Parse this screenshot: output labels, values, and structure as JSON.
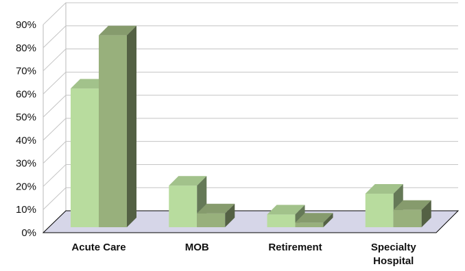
{
  "chart_data": {
    "type": "bar",
    "three_d": true,
    "title": "",
    "xlabel": "",
    "ylabel": "",
    "categories": [
      {
        "label": "Acute Care",
        "lines": [
          "Acute Care"
        ]
      },
      {
        "label": "MOB",
        "lines": [
          "MOB"
        ]
      },
      {
        "label": "Retirement",
        "lines": [
          "Retirement"
        ]
      },
      {
        "label": "Specialty Hospital",
        "lines": [
          "Specialty",
          "Hospital"
        ]
      }
    ],
    "series": [
      {
        "values": [
          0.6,
          0.18,
          0.055,
          0.145
        ],
        "color": "#b8dc9e"
      },
      {
        "values": [
          0.83,
          0.06,
          0.02,
          0.075
        ],
        "color": "#98b07c"
      }
    ],
    "ylim": [
      0,
      0.9
    ],
    "yticks": [
      {
        "value": 0,
        "label": "0%"
      },
      {
        "value": 0.1,
        "label": "10%"
      },
      {
        "value": 0.2,
        "label": "20%"
      },
      {
        "value": 0.3,
        "label": "30%"
      },
      {
        "value": 0.4,
        "label": "40%"
      },
      {
        "value": 0.5,
        "label": "50%"
      },
      {
        "value": 0.6,
        "label": "60%"
      },
      {
        "value": 0.7,
        "label": "70%"
      },
      {
        "value": 0.8,
        "label": "80%"
      },
      {
        "value": 0.9,
        "label": "90%"
      }
    ],
    "grid": true,
    "legend": "none"
  }
}
